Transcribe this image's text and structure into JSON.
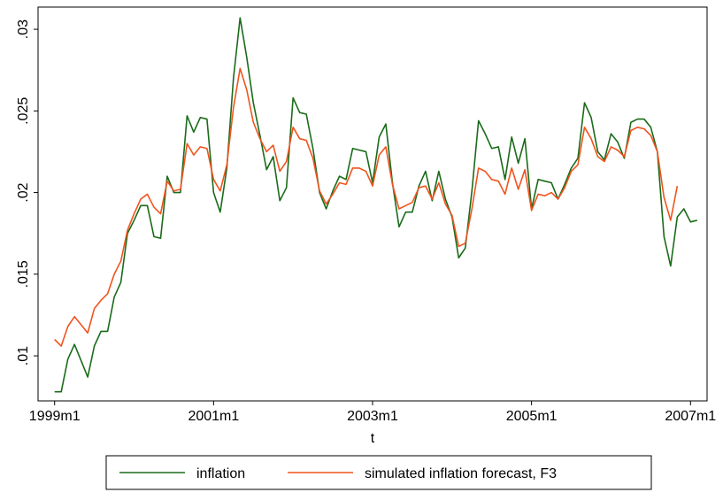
{
  "chart_data": {
    "type": "line",
    "xlabel": "t",
    "x": [
      468,
      469,
      470,
      471,
      472,
      473,
      474,
      475,
      476,
      477,
      478,
      479,
      480,
      481,
      482,
      483,
      484,
      485,
      486,
      487,
      488,
      489,
      490,
      491,
      492,
      493,
      494,
      495,
      496,
      497,
      498,
      499,
      500,
      501,
      502,
      503,
      504,
      505,
      506,
      507,
      508,
      509,
      510,
      511,
      512,
      513,
      514,
      515,
      516,
      517,
      518,
      519,
      520,
      521,
      522,
      523,
      524,
      525,
      526,
      527,
      528,
      529,
      530,
      531,
      532,
      533,
      534,
      535,
      536,
      537,
      538,
      539,
      540,
      541,
      542,
      543,
      544,
      545,
      546,
      547,
      548,
      549,
      550,
      551,
      552,
      553,
      554,
      555,
      556,
      557,
      558,
      559,
      560,
      561,
      562,
      563,
      564,
      565
    ],
    "series": [
      {
        "name": "inflation",
        "color": "#1a6b1a",
        "values": [
          0.0078,
          0.0078,
          0.0098,
          0.0107,
          0.0097,
          0.0087,
          0.0106,
          0.0115,
          0.0115,
          0.0136,
          0.0145,
          0.0175,
          0.0183,
          0.0192,
          0.0192,
          0.0173,
          0.0172,
          0.021,
          0.02,
          0.02,
          0.0247,
          0.0237,
          0.0246,
          0.0245,
          0.02,
          0.0188,
          0.0215,
          0.027,
          0.0307,
          0.0283,
          0.0255,
          0.0235,
          0.0214,
          0.0222,
          0.0195,
          0.0203,
          0.0258,
          0.0249,
          0.0248,
          0.0227,
          0.02,
          0.019,
          0.0201,
          0.021,
          0.0208,
          0.0227,
          0.0226,
          0.0225,
          0.0206,
          0.0234,
          0.0242,
          0.0206,
          0.0179,
          0.0188,
          0.0188,
          0.0204,
          0.0213,
          0.0195,
          0.0213,
          0.0196,
          0.0185,
          0.016,
          0.0166,
          0.0201,
          0.0244,
          0.0236,
          0.0227,
          0.0228,
          0.0208,
          0.0234,
          0.0218,
          0.0233,
          0.019,
          0.0208,
          0.0207,
          0.0206,
          0.0196,
          0.0205,
          0.0215,
          0.0221,
          0.0255,
          0.0246,
          0.0225,
          0.022,
          0.0236,
          0.0231,
          0.0221,
          0.0243,
          0.0245,
          0.0245,
          0.024,
          0.0225,
          0.0173,
          0.0155,
          0.0185,
          0.019,
          0.0182,
          0.0183
        ]
      },
      {
        "name": "simulated inflation forecast, F3",
        "color": "#f0541e",
        "values": [
          0.011,
          0.0106,
          0.0118,
          0.0124,
          0.0119,
          0.0114,
          0.0129,
          0.0134,
          0.0138,
          0.015,
          0.0158,
          0.0177,
          0.0187,
          0.0196,
          0.0199,
          0.0191,
          0.0187,
          0.0207,
          0.0201,
          0.0202,
          0.023,
          0.0223,
          0.0228,
          0.0227,
          0.0208,
          0.0201,
          0.0217,
          0.0252,
          0.0276,
          0.0263,
          0.0243,
          0.0233,
          0.0225,
          0.0229,
          0.0213,
          0.0219,
          0.024,
          0.0233,
          0.0232,
          0.0221,
          0.0201,
          0.0193,
          0.0199,
          0.0206,
          0.0205,
          0.0215,
          0.0215,
          0.0213,
          0.0204,
          0.0223,
          0.0228,
          0.0205,
          0.019,
          0.0192,
          0.0194,
          0.0203,
          0.0204,
          0.0196,
          0.0206,
          0.0193,
          0.0186,
          0.0167,
          0.0169,
          0.019,
          0.0215,
          0.0213,
          0.0208,
          0.0207,
          0.0199,
          0.0215,
          0.0202,
          0.0214,
          0.0189,
          0.0199,
          0.0198,
          0.02,
          0.0196,
          0.0203,
          0.0213,
          0.0217,
          0.024,
          0.0233,
          0.0222,
          0.0219,
          0.0228,
          0.0226,
          0.0222,
          0.0238,
          0.024,
          0.0239,
          0.0235,
          0.0225,
          0.0197,
          0.0183,
          0.0204,
          null,
          null,
          null
        ]
      }
    ],
    "xlim": [
      465.5,
      566.5
    ],
    "xticks": [
      {
        "value": 468,
        "label": "1999m1"
      },
      {
        "value": 492,
        "label": "2001m1"
      },
      {
        "value": 516,
        "label": "2003m1"
      },
      {
        "value": 540,
        "label": "2005m1"
      },
      {
        "value": 564,
        "label": "2007m1"
      }
    ],
    "ylim": [
      0.00724,
      0.03136
    ],
    "yticks": [
      {
        "value": 0.01,
        "label": ".01"
      },
      {
        "value": 0.015,
        "label": ".015"
      },
      {
        "value": 0.02,
        "label": ".02"
      },
      {
        "value": 0.025,
        "label": ".025"
      },
      {
        "value": 0.03,
        "label": ".03"
      }
    ],
    "grid": false,
    "legend": "bottom"
  }
}
